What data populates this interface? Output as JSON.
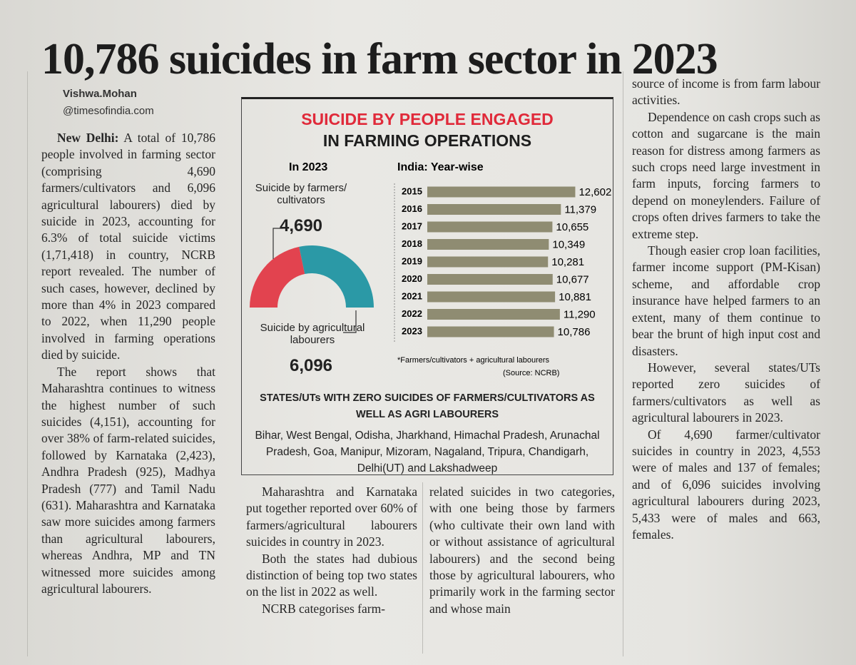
{
  "headline": "10,786 suicides in farm sector in 2023",
  "byline": {
    "name": "Vishwa.Mohan",
    "handle": "@timesofindia.com"
  },
  "article": {
    "dateline": "New Delhi:",
    "columns": [
      [
        "A total of 10,786 people involved in farming sector (comprising 4,690 farmers/cultivators and 6,096 agricultural labourers) died by suicide in 2023, accounting for 6.3% of total suicide victims (1,71,418) in country, NCRB report revealed. The number of such cases, however, declined by more than 4% in 2023 compared to 2022, when 11,290 people involved in farming operations died by suicide.",
        "The report shows that Maharashtra continues to witness the highest number of such suicides (4,151), accounting for over 38% of farm-related suicides, followed by Karnataka (2,423), Andhra Pradesh (925), Madhya Pradesh (777) and Tamil Nadu (631). Maharashtra and Karnataka saw more suicides among farmers than agricultural labourers, whereas Andhra, MP and TN witnessed more suicides among agricultural labourers."
      ],
      [
        "Maharashtra and Karnataka put together reported over 60% of farmers/agricultural labourers suicides in country in 2023.",
        "Both the states had dubious distinction of being top two states on the list in 2022 as well.",
        "NCRB categorises farm-"
      ],
      [
        "related suicides in two categories, with one being those by farmers (who cultivate their own land with or without assistance of agricultural labourers) and the second being those by agricultural labourers, who primarily work in the farming sector and whose main"
      ],
      [
        "source of income is from farm labour activities.",
        "Dependence on cash crops such as cotton and sugarcane is the main reason for distress among farmers as such crops need large investment in farm inputs, forcing farmers to depend on moneylenders. Failure of crops often drives farmers to take the extreme step.",
        "Though easier crop loan facilities, farmer income support (PM-Kisan) scheme, and affordable crop insurance have helped farmers to an extent, many of them continue to bear the brunt of high input cost and disasters.",
        "However, several states/UTs reported zero suicides of farmers/cultivators as well as agricultural labourers in 2023.",
        "Of 4,690 farmer/cultivator suicides in country in 2023, 4,553 were of males and 137 of females; and of 6,096 suicides involving agricultural labourers during 2023, 5,433 were of males and 663, females."
      ]
    ]
  },
  "infographic": {
    "title": [
      "SUICIDE BY PEOPLE ENGAGED",
      "IN FARMING OPERATIONS"
    ],
    "states_heading": "STATES/UTs WITH ZERO SUICIDES OF FARMERS/CULTIVATORS AS WELL AS AGRI LABOURERS",
    "states_list": "Bihar, West Bengal, Odisha, Jharkhand, Himachal Pradesh, Arunachal Pradesh, Goa, Manipur, Mizoram, Nagaland, Tripura, Chandigarh, Delhi(UT) and Lakshadweep"
  },
  "chart_data": [
    {
      "type": "pie",
      "half": true,
      "donut": true,
      "title": "In 2023",
      "categories": [
        "Suicide by farmers/ cultivators",
        "Suicide by agricultural labourers"
      ],
      "values": [
        4690,
        6096
      ],
      "value_labels": [
        "4,690",
        "6,096"
      ],
      "colors": [
        "#e2434f",
        "#2b99a6"
      ]
    },
    {
      "type": "bar",
      "orientation": "horizontal",
      "title": "India: Year-wise",
      "categories": [
        "2015",
        "2016",
        "2017",
        "2018",
        "2019",
        "2020",
        "2021",
        "2022",
        "2023"
      ],
      "values": [
        12602,
        11379,
        10655,
        10349,
        10281,
        10677,
        10881,
        11290,
        10786
      ],
      "value_labels": [
        "12,602",
        "11,379",
        "10,655",
        "10,349",
        "10,281",
        "10,677",
        "10,881",
        "11,290",
        "10,786"
      ],
      "color": "#8f8c72",
      "xlim": [
        0,
        13000
      ],
      "note": "*Farmers/cultivators + agricultural labourers",
      "source": "(Source: NCRB)"
    }
  ]
}
